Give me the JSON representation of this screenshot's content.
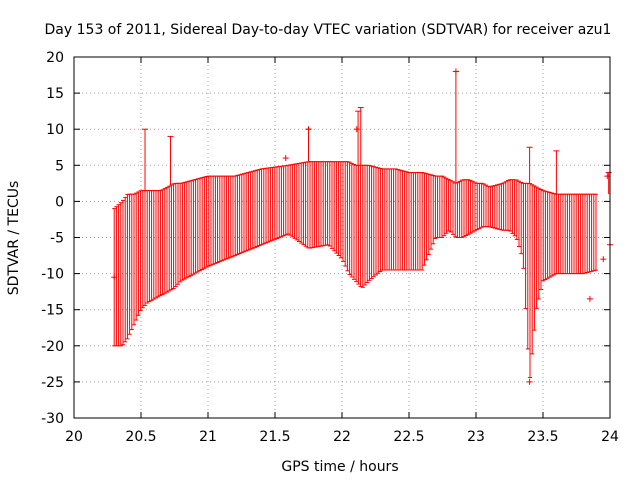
{
  "chart_data": {
    "type": "errorbar",
    "title": "Day 153 of 2011, Sidereal Day-to-day VTEC variation (SDTVAR) for receiver azu1",
    "xlabel": "GPS time / hours",
    "ylabel": "SDTVAR / TECUs",
    "xlim": [
      20,
      24
    ],
    "ylim": [
      -30,
      20
    ],
    "grid": true,
    "xticks": [
      "20",
      "20.5",
      "21",
      "21.5",
      "22",
      "22.5",
      "23",
      "23.5",
      "24"
    ],
    "yticks": [
      "20",
      "15",
      "10",
      "5",
      "0",
      "-5",
      "-10",
      "-15",
      "-20",
      "-25",
      "-30"
    ],
    "series_color": "#ff0000",
    "envelope": {
      "x": [
        20.3,
        20.33,
        20.36,
        20.4,
        20.45,
        20.5,
        20.55,
        20.6,
        20.65,
        20.7,
        20.75,
        20.8,
        20.9,
        21.0,
        21.2,
        21.4,
        21.6,
        21.75,
        21.9,
        22.0,
        22.05,
        22.1,
        22.15,
        22.2,
        22.3,
        22.4,
        22.5,
        22.6,
        22.7,
        22.75,
        22.8,
        22.85,
        22.9,
        22.95,
        23.0,
        23.05,
        23.1,
        23.2,
        23.25,
        23.3,
        23.35,
        23.4,
        23.45,
        23.5,
        23.6,
        23.7,
        23.8,
        23.9
      ],
      "upper": [
        -1.0,
        -0.5,
        0.0,
        1.0,
        1.0,
        1.5,
        1.5,
        1.5,
        1.5,
        2.0,
        2.5,
        2.5,
        3.0,
        3.5,
        3.5,
        4.5,
        5.0,
        5.5,
        5.5,
        5.5,
        5.5,
        5.0,
        5.0,
        5.0,
        4.5,
        4.5,
        4.0,
        4.0,
        3.5,
        3.5,
        3.0,
        2.5,
        3.0,
        3.0,
        2.5,
        2.5,
        2.0,
        2.5,
        3.0,
        3.0,
        2.5,
        2.5,
        2.0,
        1.5,
        1.0,
        1.0,
        1.0,
        1.0
      ],
      "lower": [
        -20.0,
        -20.0,
        -20.0,
        -19.0,
        -17.0,
        -15.0,
        -14.0,
        -13.5,
        -13.0,
        -12.5,
        -12.0,
        -11.0,
        -10.0,
        -9.0,
        -7.5,
        -6.0,
        -4.5,
        -6.5,
        -6.0,
        -8.0,
        -10.0,
        -11.0,
        -12.0,
        -11.0,
        -9.5,
        -9.5,
        -9.5,
        -9.5,
        -5.0,
        -5.0,
        -4.0,
        -5.0,
        -5.0,
        -4.5,
        -4.0,
        -3.5,
        -3.5,
        -4.0,
        -4.0,
        -5.0,
        -8.0,
        -25.0,
        -15.0,
        -11.0,
        -10.0,
        -10.0,
        -10.0,
        -9.5
      ]
    },
    "spikes": [
      {
        "x": 20.53,
        "y_top": 10.0
      },
      {
        "x": 20.72,
        "y_top": 9.0
      },
      {
        "x": 21.75,
        "y_top": 10.0
      },
      {
        "x": 22.12,
        "y_top": 12.5
      },
      {
        "x": 22.14,
        "y_top": 13.0
      },
      {
        "x": 22.85,
        "y_top": 18.0
      },
      {
        "x": 23.4,
        "y_top": 7.5
      },
      {
        "x": 23.6,
        "y_top": 7.0
      },
      {
        "x": 23.99,
        "y_top": 4.0
      }
    ],
    "outliers": [
      {
        "x": 20.3,
        "y": -10.5
      },
      {
        "x": 21.58,
        "y": 6.0
      },
      {
        "x": 21.75,
        "y": 10.0
      },
      {
        "x": 22.11,
        "y": 10.0
      },
      {
        "x": 22.85,
        "y": 18.0
      },
      {
        "x": 23.4,
        "y": -25.0
      },
      {
        "x": 23.85,
        "y": -13.5
      },
      {
        "x": 23.95,
        "y": -8.0
      },
      {
        "x": 24.0,
        "y": -6.0
      },
      {
        "x": 23.98,
        "y": 3.5
      }
    ]
  }
}
